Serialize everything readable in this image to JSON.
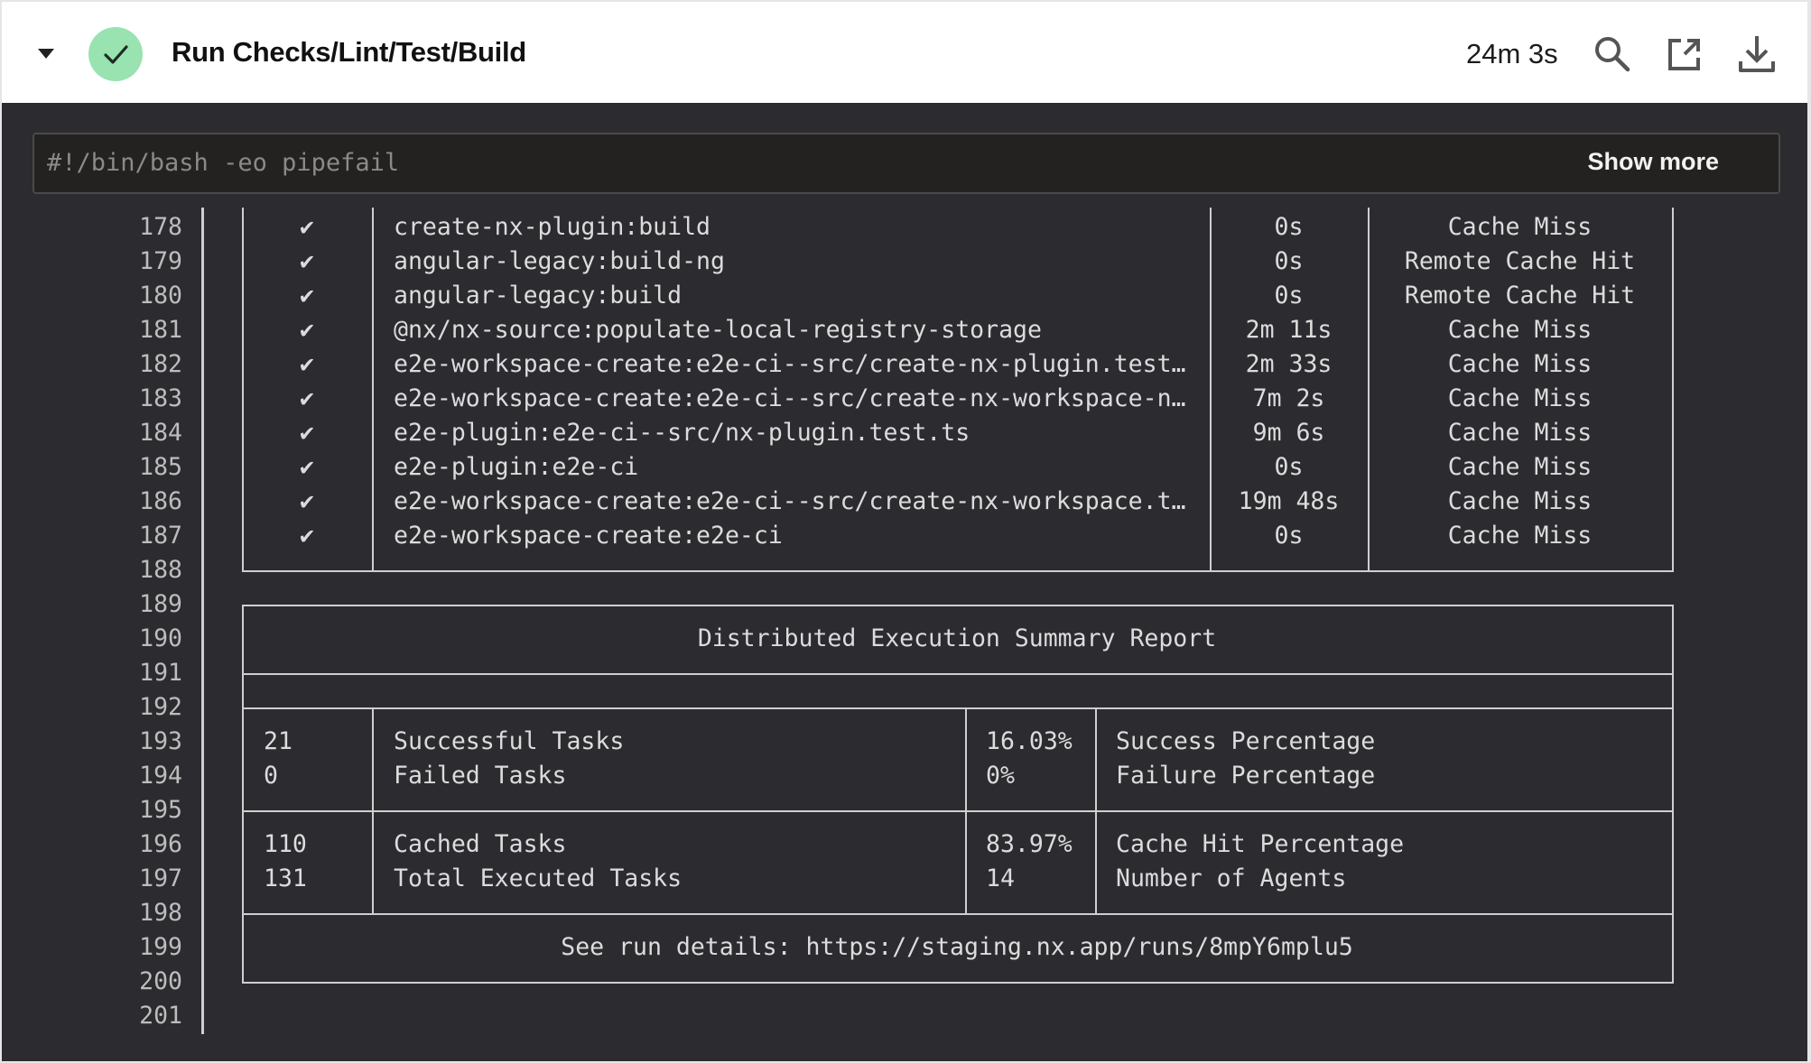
{
  "header": {
    "title": "Run Checks/Lint/Test/Build",
    "duration": "24m 3s",
    "status": "success",
    "status_color": "#98e3b0",
    "icons": [
      "chevron-down-icon",
      "check-icon",
      "search-icon",
      "external-link-icon",
      "download-icon"
    ]
  },
  "command": {
    "text": "#!/bin/bash -eo pipefail",
    "show_more_label": "Show more"
  },
  "log": {
    "line_numbers": [
      "178",
      "179",
      "180",
      "181",
      "182",
      "183",
      "184",
      "185",
      "186",
      "187",
      "188",
      "189",
      "190",
      "191",
      "192",
      "193",
      "194",
      "195",
      "196",
      "197",
      "198",
      "199",
      "200",
      "201"
    ],
    "tasks": [
      {
        "mark": "✔",
        "task": "create-nx-plugin:build",
        "duration": "0s",
        "cache": "Cache Miss"
      },
      {
        "mark": "✔",
        "task": "angular-legacy:build-ng",
        "duration": "0s",
        "cache": "Remote Cache Hit"
      },
      {
        "mark": "✔",
        "task": "angular-legacy:build",
        "duration": "0s",
        "cache": "Remote Cache Hit"
      },
      {
        "mark": "✔",
        "task": "@nx/nx-source:populate-local-registry-storage",
        "duration": "2m 11s",
        "cache": "Cache Miss"
      },
      {
        "mark": "✔",
        "task": "e2e-workspace-create:e2e-ci--src/create-nx-plugin.test…",
        "duration": "2m 33s",
        "cache": "Cache Miss"
      },
      {
        "mark": "✔",
        "task": "e2e-workspace-create:e2e-ci--src/create-nx-workspace-n…",
        "duration": "7m 2s",
        "cache": "Cache Miss"
      },
      {
        "mark": "✔",
        "task": "e2e-plugin:e2e-ci--src/nx-plugin.test.ts",
        "duration": "9m 6s",
        "cache": "Cache Miss"
      },
      {
        "mark": "✔",
        "task": "e2e-plugin:e2e-ci",
        "duration": "0s",
        "cache": "Cache Miss"
      },
      {
        "mark": "✔",
        "task": "e2e-workspace-create:e2e-ci--src/create-nx-workspace.t…",
        "duration": "19m 48s",
        "cache": "Cache Miss"
      },
      {
        "mark": "✔",
        "task": "e2e-workspace-create:e2e-ci",
        "duration": "0s",
        "cache": "Cache Miss"
      }
    ],
    "summary": {
      "title": "Distributed Execution Summary Report",
      "groups": [
        [
          {
            "count": "21",
            "label": "Successful Tasks",
            "value": "16.03%",
            "metric": "Success Percentage"
          },
          {
            "count": "0",
            "label": "Failed Tasks",
            "value": "0%",
            "metric": "Failure Percentage"
          }
        ],
        [
          {
            "count": "110",
            "label": "Cached Tasks",
            "value": "83.97%",
            "metric": "Cache Hit Percentage"
          },
          {
            "count": "131",
            "label": "Total Executed Tasks",
            "value": "14",
            "metric": "Number of Agents"
          }
        ]
      ],
      "details": "See run details: https://staging.nx.app/runs/8mpY6mplu5"
    }
  }
}
